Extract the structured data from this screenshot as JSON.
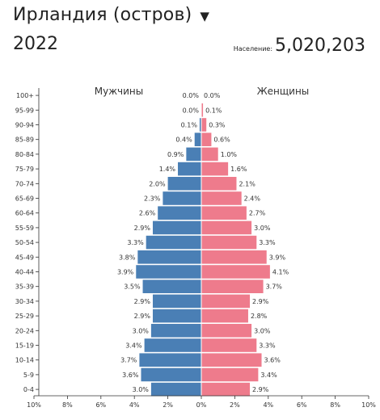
{
  "header": {
    "title": "Ирландия (остров)",
    "year": "2022",
    "population_label": "Население:",
    "population_value": "5,020,203"
  },
  "chart_data": {
    "type": "bar",
    "orientation": "horizontal-pyramid",
    "left_label": "Мужчины",
    "right_label": "Женщины",
    "categories": [
      "100+",
      "95-99",
      "90-94",
      "85-89",
      "80-84",
      "75-79",
      "70-74",
      "65-69",
      "60-64",
      "55-59",
      "50-54",
      "45-49",
      "40-44",
      "35-39",
      "30-34",
      "25-29",
      "20-24",
      "15-19",
      "10-14",
      "5-9",
      "0-4"
    ],
    "series": [
      {
        "name": "Мужчины",
        "color": "#4a7fb5",
        "values": [
          0.0,
          0.0,
          0.1,
          0.4,
          0.9,
          1.4,
          2.0,
          2.3,
          2.6,
          2.9,
          3.3,
          3.8,
          3.9,
          3.5,
          2.9,
          2.9,
          3.0,
          3.4,
          3.7,
          3.6,
          3.0
        ],
        "labels": [
          "0.0%",
          "0.0%",
          "0.1%",
          "0.4%",
          "0.9%",
          "1.4%",
          "2.0%",
          "2.3%",
          "2.6%",
          "2.9%",
          "3.3%",
          "3.8%",
          "3.9%",
          "3.5%",
          "2.9%",
          "2.9%",
          "3.0%",
          "3.4%",
          "3.7%",
          "3.6%",
          "3.0%"
        ]
      },
      {
        "name": "Женщины",
        "color": "#ee7b8c",
        "values": [
          0.0,
          0.1,
          0.3,
          0.6,
          1.0,
          1.6,
          2.1,
          2.4,
          2.7,
          3.0,
          3.3,
          3.9,
          4.1,
          3.7,
          2.9,
          2.8,
          3.0,
          3.3,
          3.6,
          3.4,
          2.9
        ],
        "labels": [
          "0.0%",
          "0.1%",
          "0.3%",
          "0.6%",
          "1.0%",
          "1.6%",
          "2.1%",
          "2.4%",
          "2.7%",
          "3.0%",
          "3.3%",
          "3.9%",
          "4.1%",
          "3.7%",
          "2.9%",
          "2.8%",
          "3.0%",
          "3.3%",
          "3.6%",
          "3.4%",
          "2.9%"
        ]
      }
    ],
    "x_ticks": [
      "10%",
      "8%",
      "6%",
      "4%",
      "2%",
      "0%",
      "2%",
      "4%",
      "6%",
      "8%",
      "10%"
    ],
    "xlim": [
      -10,
      10
    ]
  }
}
